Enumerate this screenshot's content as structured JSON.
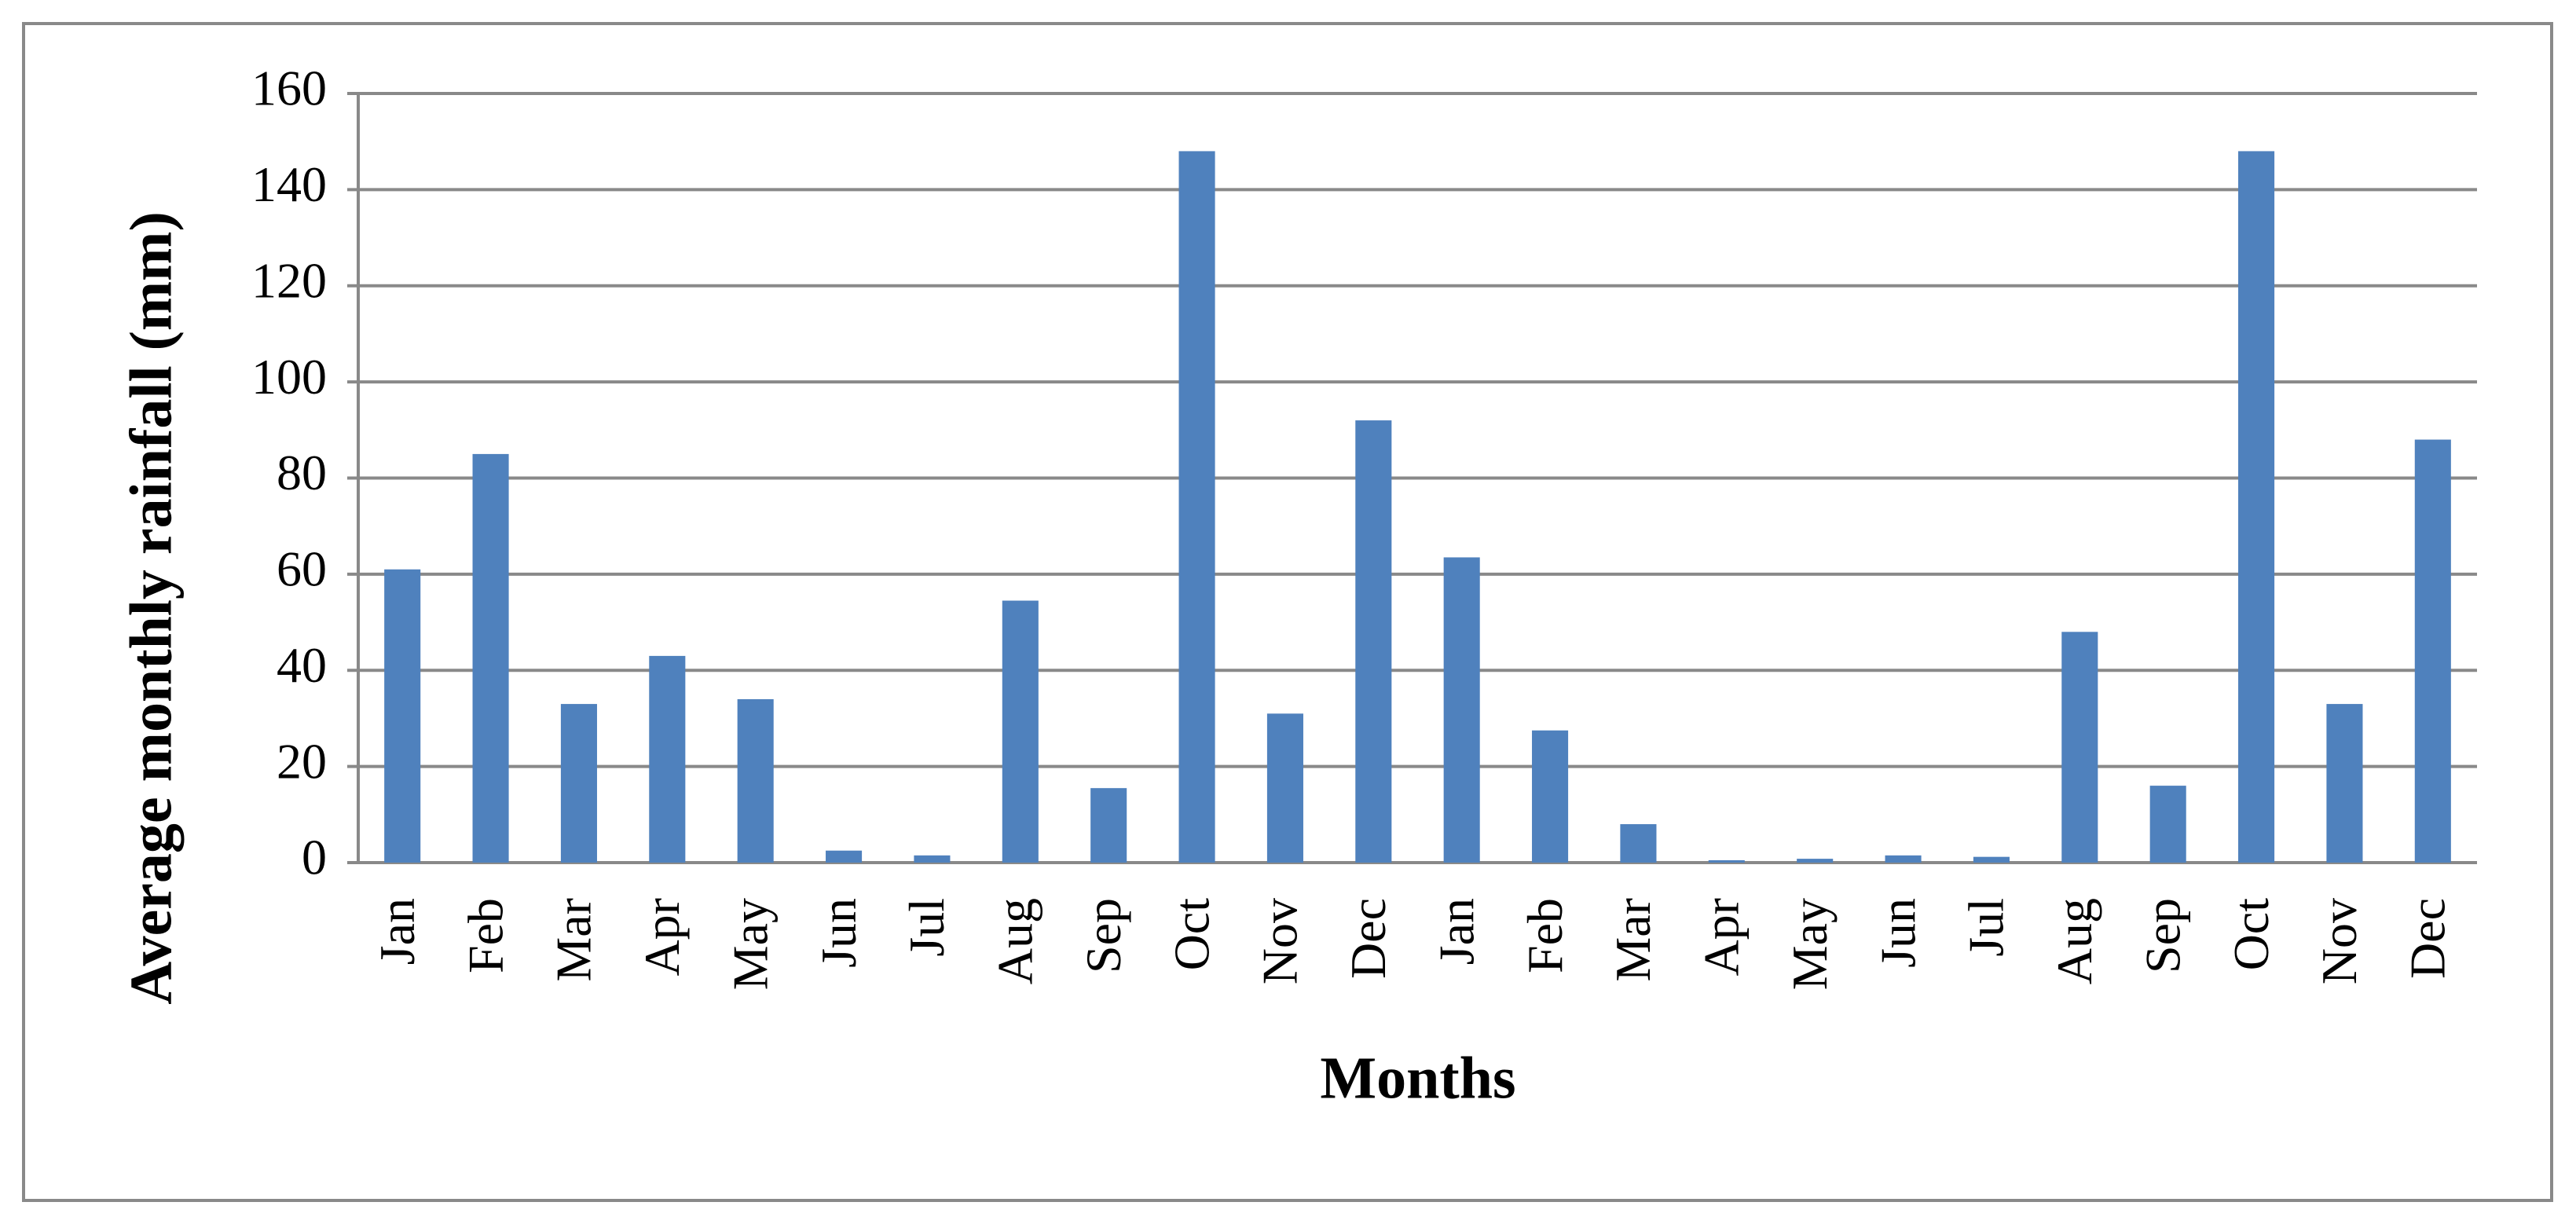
{
  "chart_data": {
    "type": "bar",
    "x_label": "Months",
    "y_label": "Average monthly rainfall (mm)",
    "categories": [
      "Jan",
      "Feb",
      "Mar",
      "Apr",
      "May",
      "Jun",
      "Jul",
      "Aug",
      "Sep",
      "Oct",
      "Nov",
      "Dec",
      "Jan",
      "Feb",
      "Mar",
      "Apr",
      "May",
      "Jun",
      "Jul",
      "Aug",
      "Sep",
      "Oct",
      "Nov",
      "Dec"
    ],
    "values": [
      61,
      85,
      33,
      43,
      34,
      2.5,
      1.5,
      54.5,
      15.5,
      148,
      31,
      92,
      63.5,
      27.5,
      8,
      0.5,
      0.8,
      1.5,
      1.2,
      48,
      16,
      148,
      33,
      88
    ],
    "color": "#4f81bd",
    "ylim": [
      0,
      160
    ],
    "yticks": [
      0,
      20,
      40,
      60,
      80,
      100,
      120,
      140,
      160
    ],
    "grid": true
  }
}
